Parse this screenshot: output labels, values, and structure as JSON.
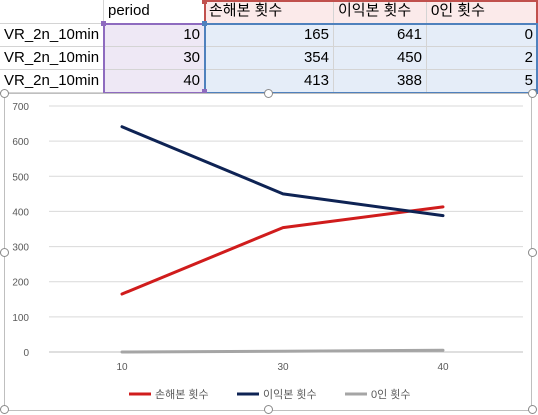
{
  "sheet": {
    "headers": [
      "",
      "period",
      "손해본 횟수",
      "이익본 횟수",
      "0인 횟수"
    ],
    "rows": [
      [
        "VR_2n_10min",
        "10",
        "165",
        "641",
        "0"
      ],
      [
        "VR_2n_10min",
        "30",
        "354",
        "450",
        "2"
      ],
      [
        "VR_2n_10min",
        "40",
        "413",
        "388",
        "5"
      ]
    ]
  },
  "colors": {
    "series_loss": "#d01c1c",
    "series_profit": "#0e2354",
    "series_zero": "#a5a5a5",
    "selection_purple": "#8e6bbf",
    "selection_red": "#c0504d",
    "selection_blue": "#4f81bd"
  },
  "chart_data": {
    "type": "line",
    "title": "",
    "xlabel": "",
    "ylabel": "",
    "categories": [
      "10",
      "30",
      "40"
    ],
    "ylim": [
      0,
      700
    ],
    "yticks": [
      0,
      100,
      200,
      300,
      400,
      500,
      600,
      700
    ],
    "grid": true,
    "legend_position": "bottom",
    "series": [
      {
        "name": "손해본 횟수",
        "values": [
          165,
          354,
          413
        ],
        "color": "#d01c1c"
      },
      {
        "name": "이익본 횟수",
        "values": [
          641,
          450,
          388
        ],
        "color": "#0e2354"
      },
      {
        "name": "0인 횟수",
        "values": [
          0,
          2,
          5
        ],
        "color": "#a5a5a5"
      }
    ]
  }
}
